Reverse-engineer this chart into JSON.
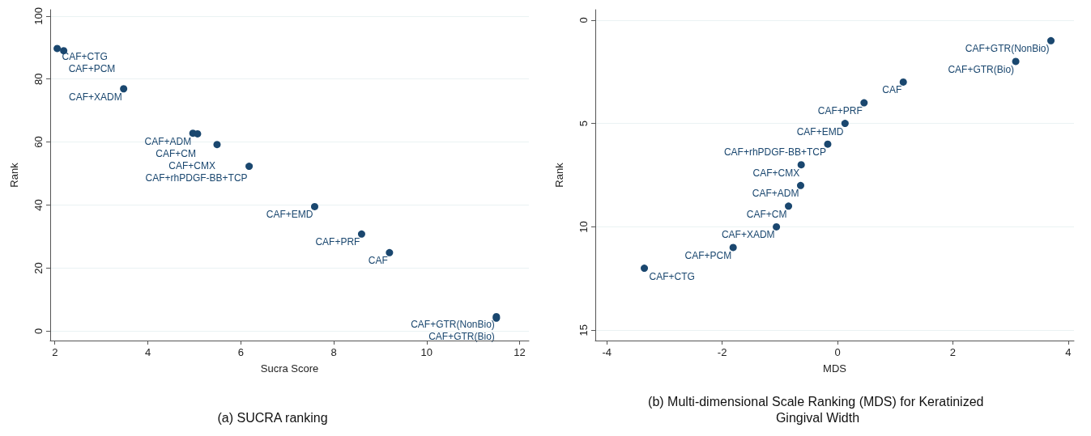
{
  "chart_data": [
    {
      "type": "scatter",
      "title": "(a) SUCRA ranking",
      "xlabel": "Sucra Score",
      "ylabel": "Rank",
      "x": [
        2.05,
        2.19,
        3.48,
        4.97,
        5.07,
        5.49,
        6.18,
        7.59,
        8.6,
        9.2,
        11.5,
        11.5
      ],
      "series": [
        {
          "color": "#1a476f",
          "values": [
            89.7,
            89,
            76.9,
            62.8,
            62.6,
            59.2,
            52.3,
            39.5,
            30.8,
            24.9,
            4.6,
            4.1
          ]
        }
      ],
      "xlim": [
        1.9,
        12.2
      ],
      "xticks": [
        2,
        4,
        6,
        8,
        10,
        12
      ],
      "ylim": [
        -3,
        102
      ],
      "yticks": [
        0,
        20,
        40,
        60,
        80,
        100
      ],
      "grid": "y",
      "marker": "circle",
      "annotations": [
        {
          "text": "CAF+CTG",
          "x": 2.05,
          "y": 89.7
        },
        {
          "text": "CAF+PCM",
          "x": 2.19,
          "y": 89
        },
        {
          "text": "CAF+XADM",
          "x": 3.48,
          "y": 76.9
        },
        {
          "text": "CAF+ADM",
          "x": 4.97,
          "y": 62.8
        },
        {
          "text": "CAF+CM",
          "x": 5.07,
          "y": 62.6
        },
        {
          "text": "CAF+CMX",
          "x": 5.49,
          "y": 59.2
        },
        {
          "text": "CAF+rhPDGF-BB+TCP",
          "x": 6.18,
          "y": 52.3
        },
        {
          "text": "CAF+EMD",
          "x": 7.59,
          "y": 39.5
        },
        {
          "text": "CAF+PRF",
          "x": 8.6,
          "y": 30.8
        },
        {
          "text": "CAF",
          "x": 9.2,
          "y": 24.9
        },
        {
          "text": "CAF+GTR(NonBio)",
          "x": 11.5,
          "y": 4.6
        },
        {
          "text": "CAF+GTR(Bio)",
          "x": 11.5,
          "y": 4.1
        }
      ]
    },
    {
      "type": "scatter",
      "title": "(b) Multi-dimensional Scale Ranking (MDS) for Keratinized Gingival Width",
      "xlabel": "MDS",
      "ylabel": "Rank",
      "x": [
        3.7,
        3.09,
        1.14,
        0.46,
        0.13,
        -0.17,
        -0.63,
        -0.64,
        -0.85,
        -1.06,
        -1.81,
        -3.35
      ],
      "series": [
        {
          "color": "#1a476f",
          "values": [
            1,
            2,
            3,
            4,
            5,
            6,
            7,
            8,
            9,
            10,
            11,
            12
          ]
        }
      ],
      "xlim": [
        -4.2,
        4.1
      ],
      "xticks": [
        -4,
        -2,
        0,
        2,
        4
      ],
      "ylim": [
        15.5,
        -0.5
      ],
      "yticks": [
        0,
        5,
        10,
        15
      ],
      "grid": "y",
      "marker": "circle",
      "annotations": [
        {
          "text": "CAF+GTR(NonBio)",
          "x": 3.7,
          "y": 1
        },
        {
          "text": "CAF+GTR(Bio)",
          "x": 3.09,
          "y": 2
        },
        {
          "text": "CAF",
          "x": 1.14,
          "y": 3
        },
        {
          "text": "CAF+PRF",
          "x": 0.46,
          "y": 4
        },
        {
          "text": "CAF+EMD",
          "x": 0.13,
          "y": 5
        },
        {
          "text": "CAF+rhPDGF-BB+TCP",
          "x": -0.17,
          "y": 6
        },
        {
          "text": "CAF+CMX",
          "x": -0.63,
          "y": 7
        },
        {
          "text": "CAF+ADM",
          "x": -0.64,
          "y": 8
        },
        {
          "text": "CAF+CM",
          "x": -0.85,
          "y": 9
        },
        {
          "text": "CAF+XADM",
          "x": -1.06,
          "y": 10
        },
        {
          "text": "CAF+PCM",
          "x": -1.81,
          "y": 11
        },
        {
          "text": "CAF+CTG",
          "x": -3.35,
          "y": 12
        }
      ]
    }
  ]
}
